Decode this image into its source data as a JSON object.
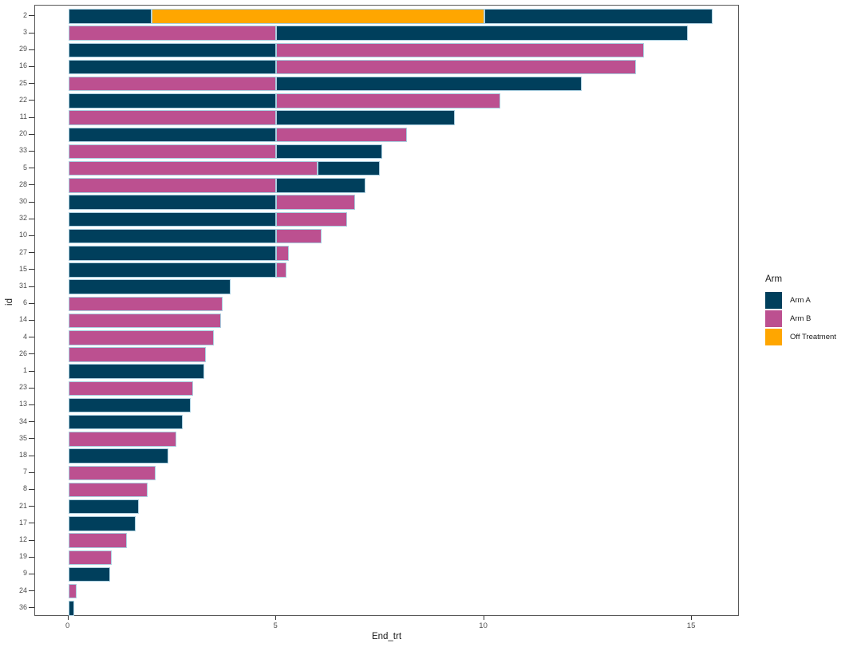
{
  "chart_data": {
    "type": "bar",
    "orientation": "horizontal",
    "title": "",
    "xlabel": "End_trt",
    "ylabel": "id",
    "x_ticks": [
      0,
      5,
      10,
      15
    ],
    "x_domain": [
      -0.8,
      16.15
    ],
    "grid": false,
    "legend": {
      "title": "Arm",
      "position": "right",
      "items": [
        {
          "label": "Arm A",
          "color": "#003f5c"
        },
        {
          "label": "Arm B",
          "color": "#bc5090"
        },
        {
          "label": "Off Treatment",
          "color": "#ffa600"
        }
      ]
    },
    "rows": [
      {
        "id": "2",
        "segments": [
          {
            "arm": "Arm A",
            "from": 0,
            "to": 2
          },
          {
            "arm": "Off Treatment",
            "from": 2,
            "to": 10
          },
          {
            "arm": "Arm A",
            "from": 10,
            "to": 15.5
          }
        ]
      },
      {
        "id": "3",
        "segments": [
          {
            "arm": "Arm B",
            "from": 0,
            "to": 5
          },
          {
            "arm": "Arm A",
            "from": 5,
            "to": 14.9
          }
        ]
      },
      {
        "id": "29",
        "segments": [
          {
            "arm": "Arm A",
            "from": 0,
            "to": 5
          },
          {
            "arm": "Arm B",
            "from": 5,
            "to": 13.85
          }
        ]
      },
      {
        "id": "16",
        "segments": [
          {
            "arm": "Arm A",
            "from": 0,
            "to": 5
          },
          {
            "arm": "Arm B",
            "from": 5,
            "to": 13.65
          }
        ]
      },
      {
        "id": "25",
        "segments": [
          {
            "arm": "Arm B",
            "from": 0,
            "to": 5
          },
          {
            "arm": "Arm A",
            "from": 5,
            "to": 12.35
          }
        ]
      },
      {
        "id": "22",
        "segments": [
          {
            "arm": "Arm A",
            "from": 0,
            "to": 5
          },
          {
            "arm": "Arm B",
            "from": 5,
            "to": 10.4
          }
        ]
      },
      {
        "id": "11",
        "segments": [
          {
            "arm": "Arm B",
            "from": 0,
            "to": 5
          },
          {
            "arm": "Arm A",
            "from": 5,
            "to": 9.3
          }
        ]
      },
      {
        "id": "20",
        "segments": [
          {
            "arm": "Arm A",
            "from": 0,
            "to": 5
          },
          {
            "arm": "Arm B",
            "from": 5,
            "to": 8.15
          }
        ]
      },
      {
        "id": "33",
        "segments": [
          {
            "arm": "Arm B",
            "from": 0,
            "to": 5
          },
          {
            "arm": "Arm A",
            "from": 5,
            "to": 7.55
          }
        ]
      },
      {
        "id": "5",
        "segments": [
          {
            "arm": "Arm B",
            "from": 0,
            "to": 6
          },
          {
            "arm": "Arm A",
            "from": 6,
            "to": 7.5
          }
        ]
      },
      {
        "id": "28",
        "segments": [
          {
            "arm": "Arm B",
            "from": 0,
            "to": 5
          },
          {
            "arm": "Arm A",
            "from": 5,
            "to": 7.15
          }
        ]
      },
      {
        "id": "30",
        "segments": [
          {
            "arm": "Arm A",
            "from": 0,
            "to": 5
          },
          {
            "arm": "Arm B",
            "from": 5,
            "to": 6.9
          }
        ]
      },
      {
        "id": "32",
        "segments": [
          {
            "arm": "Arm A",
            "from": 0,
            "to": 5
          },
          {
            "arm": "Arm B",
            "from": 5,
            "to": 6.7
          }
        ]
      },
      {
        "id": "10",
        "segments": [
          {
            "arm": "Arm A",
            "from": 0,
            "to": 5
          },
          {
            "arm": "Arm B",
            "from": 5,
            "to": 6.1
          }
        ]
      },
      {
        "id": "27",
        "segments": [
          {
            "arm": "Arm A",
            "from": 0,
            "to": 5
          },
          {
            "arm": "Arm B",
            "from": 5,
            "to": 5.3
          }
        ]
      },
      {
        "id": "15",
        "segments": [
          {
            "arm": "Arm A",
            "from": 0,
            "to": 5
          },
          {
            "arm": "Arm B",
            "from": 5,
            "to": 5.25
          }
        ]
      },
      {
        "id": "31",
        "segments": [
          {
            "arm": "Arm A",
            "from": 0,
            "to": 3.9
          }
        ]
      },
      {
        "id": "6",
        "segments": [
          {
            "arm": "Arm B",
            "from": 0,
            "to": 3.72
          }
        ]
      },
      {
        "id": "14",
        "segments": [
          {
            "arm": "Arm B",
            "from": 0,
            "to": 3.68
          }
        ]
      },
      {
        "id": "4",
        "segments": [
          {
            "arm": "Arm B",
            "from": 0,
            "to": 3.5
          }
        ]
      },
      {
        "id": "26",
        "segments": [
          {
            "arm": "Arm B",
            "from": 0,
            "to": 3.3
          }
        ]
      },
      {
        "id": "1",
        "segments": [
          {
            "arm": "Arm A",
            "from": 0,
            "to": 3.27
          }
        ]
      },
      {
        "id": "23",
        "segments": [
          {
            "arm": "Arm B",
            "from": 0,
            "to": 3.0
          }
        ]
      },
      {
        "id": "13",
        "segments": [
          {
            "arm": "Arm A",
            "from": 0,
            "to": 2.95
          }
        ]
      },
      {
        "id": "34",
        "segments": [
          {
            "arm": "Arm A",
            "from": 0,
            "to": 2.75
          }
        ]
      },
      {
        "id": "35",
        "segments": [
          {
            "arm": "Arm B",
            "from": 0,
            "to": 2.6
          }
        ]
      },
      {
        "id": "18",
        "segments": [
          {
            "arm": "Arm A",
            "from": 0,
            "to": 2.4
          }
        ]
      },
      {
        "id": "7",
        "segments": [
          {
            "arm": "Arm B",
            "from": 0,
            "to": 2.1
          }
        ]
      },
      {
        "id": "8",
        "segments": [
          {
            "arm": "Arm B",
            "from": 0,
            "to": 1.9
          }
        ]
      },
      {
        "id": "21",
        "segments": [
          {
            "arm": "Arm A",
            "from": 0,
            "to": 1.7
          }
        ]
      },
      {
        "id": "17",
        "segments": [
          {
            "arm": "Arm A",
            "from": 0,
            "to": 1.62
          }
        ]
      },
      {
        "id": "12",
        "segments": [
          {
            "arm": "Arm B",
            "from": 0,
            "to": 1.4
          }
        ]
      },
      {
        "id": "19",
        "segments": [
          {
            "arm": "Arm B",
            "from": 0,
            "to": 1.05
          }
        ]
      },
      {
        "id": "9",
        "segments": [
          {
            "arm": "Arm A",
            "from": 0,
            "to": 1.0
          }
        ]
      },
      {
        "id": "24",
        "segments": [
          {
            "arm": "Arm B",
            "from": 0,
            "to": 0.2
          }
        ]
      },
      {
        "id": "36",
        "segments": [
          {
            "arm": "Arm A",
            "from": 0,
            "to": 0.15
          }
        ]
      }
    ]
  }
}
